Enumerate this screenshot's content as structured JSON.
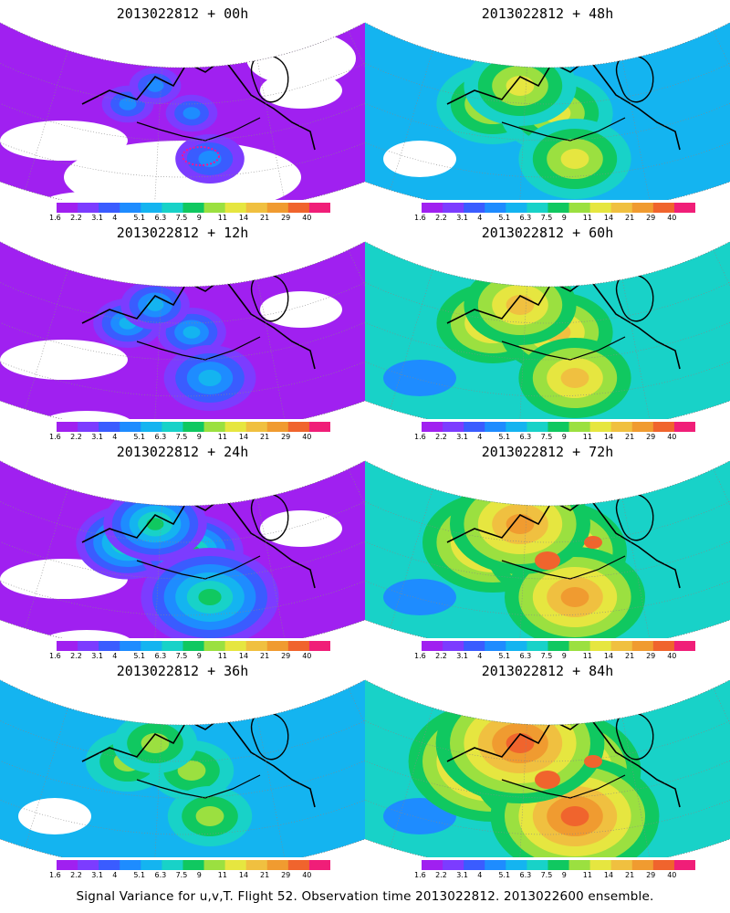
{
  "panels": [
    {
      "title": "2013022812 + 00h",
      "intensity": 0
    },
    {
      "title": "2013022812 + 48h",
      "intensity": 4
    },
    {
      "title": "2013022812 + 12h",
      "intensity": 1
    },
    {
      "title": "2013022812 + 60h",
      "intensity": 5
    },
    {
      "title": "2013022812 + 24h",
      "intensity": 2
    },
    {
      "title": "2013022812 + 72h",
      "intensity": 6
    },
    {
      "title": "2013022812 + 36h",
      "intensity": 3
    },
    {
      "title": "2013022812 + 84h",
      "intensity": 7
    }
  ],
  "colorbar": {
    "labels": [
      "1.6",
      "2.2",
      "3.1",
      "4",
      "5.1",
      "6.3",
      "7.5",
      "9",
      "11",
      "14",
      "21",
      "29",
      "40"
    ],
    "colors": [
      "#a020f0",
      "#7c3cff",
      "#3a5cff",
      "#1e8cff",
      "#14b4f0",
      "#18d2c8",
      "#10c860",
      "#9be040",
      "#e6e640",
      "#f0c040",
      "#f09b30",
      "#f0642d",
      "#f01e78"
    ]
  },
  "footer": "Signal Variance for u,v,T. Flight 52. Observation time 2013022812. 2013022600 ensemble."
}
